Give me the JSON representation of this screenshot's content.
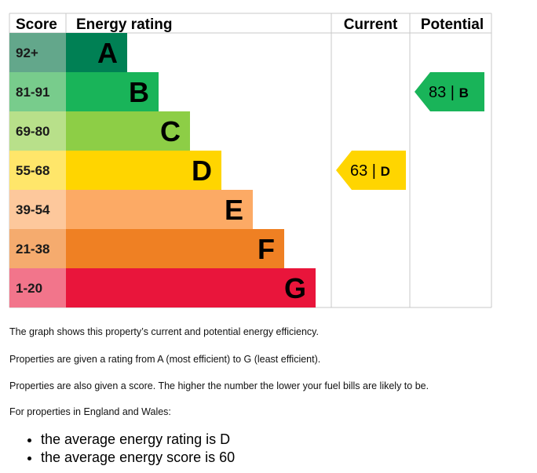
{
  "chart_data": {
    "type": "bar",
    "headers": {
      "score": "Score",
      "rating": "Energy rating",
      "current": "Current",
      "potential": "Potential"
    },
    "bands": [
      {
        "letter": "A",
        "range": "92+",
        "color": "#008054",
        "score_color": "#63a78b"
      },
      {
        "letter": "B",
        "range": "81-91",
        "color": "#19b459",
        "score_color": "#78cc8c"
      },
      {
        "letter": "C",
        "range": "69-80",
        "color": "#8dce46",
        "score_color": "#b8e08a"
      },
      {
        "letter": "D",
        "range": "55-68",
        "color": "#ffd500",
        "score_color": "#ffe66a"
      },
      {
        "letter": "E",
        "range": "39-54",
        "color": "#fcaa65",
        "score_color": "#fdc89c"
      },
      {
        "letter": "F",
        "range": "21-38",
        "color": "#ef8023",
        "score_color": "#f5ab6e"
      },
      {
        "letter": "G",
        "range": "1-20",
        "color": "#e9153b",
        "score_color": "#f2758b"
      }
    ],
    "current": {
      "score": 63,
      "letter": "D",
      "label": "63 |",
      "color": "#ffd500"
    },
    "potential": {
      "score": 83,
      "letter": "B",
      "label": "83 |",
      "color": "#19b459"
    }
  },
  "text": {
    "p1": "The graph shows this property’s current and potential energy efficiency.",
    "p2": "Properties are given a rating from A (most efficient) to G (least efficient).",
    "p3": "Properties are also given a score. The higher the number the lower your fuel bills are likely to be.",
    "p4": "For properties in England and Wales:",
    "bullets": [
      "the average energy rating is D",
      "the average energy score is 60"
    ]
  }
}
